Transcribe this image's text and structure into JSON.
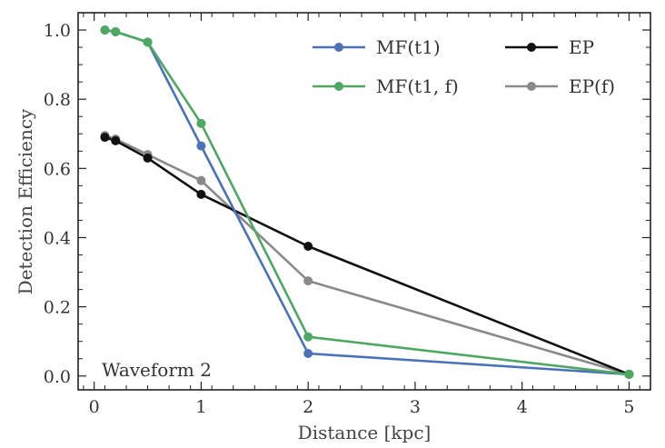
{
  "chart_data": {
    "type": "line",
    "title": "",
    "xlabel": "Distance [kpc]",
    "ylabel": "Detection Efficiency",
    "xlim": [
      -0.15,
      5.2
    ],
    "ylim": [
      -0.04,
      1.05
    ],
    "x_ticks": [
      0,
      1,
      2,
      3,
      4,
      5
    ],
    "y_ticks": [
      0.0,
      0.2,
      0.4,
      0.6,
      0.8,
      1.0
    ],
    "x_tick_labels": [
      "0",
      "1",
      "2",
      "3",
      "4",
      "5"
    ],
    "y_tick_labels": [
      "0.0",
      "0.2",
      "0.4",
      "0.6",
      "0.8",
      "1.0"
    ],
    "grid": false,
    "legend_position": "top-right",
    "annotation": "Waveform 2",
    "series": [
      {
        "name": "MF(t1)",
        "color": "#4a72b8",
        "x": [
          0.1,
          0.2,
          0.5,
          1.0,
          2.0,
          5.0
        ],
        "values": [
          1.0,
          0.995,
          0.965,
          0.665,
          0.065,
          0.005
        ]
      },
      {
        "name": "MF(t1, f)",
        "color": "#4ea862",
        "x": [
          0.1,
          0.2,
          0.5,
          1.0,
          2.0,
          5.0
        ],
        "values": [
          1.0,
          0.995,
          0.965,
          0.73,
          0.113,
          0.005
        ]
      },
      {
        "name": "EP",
        "color": "#111111",
        "x": [
          0.1,
          0.2,
          0.5,
          1.0,
          2.0,
          5.0
        ],
        "values": [
          0.69,
          0.68,
          0.63,
          0.525,
          0.375,
          0.005
        ]
      },
      {
        "name": "EP(f)",
        "color": "#8a8a8a",
        "x": [
          0.1,
          0.2,
          0.5,
          1.0,
          2.0,
          5.0
        ],
        "values": [
          0.695,
          0.685,
          0.64,
          0.565,
          0.275,
          0.005
        ]
      }
    ]
  }
}
